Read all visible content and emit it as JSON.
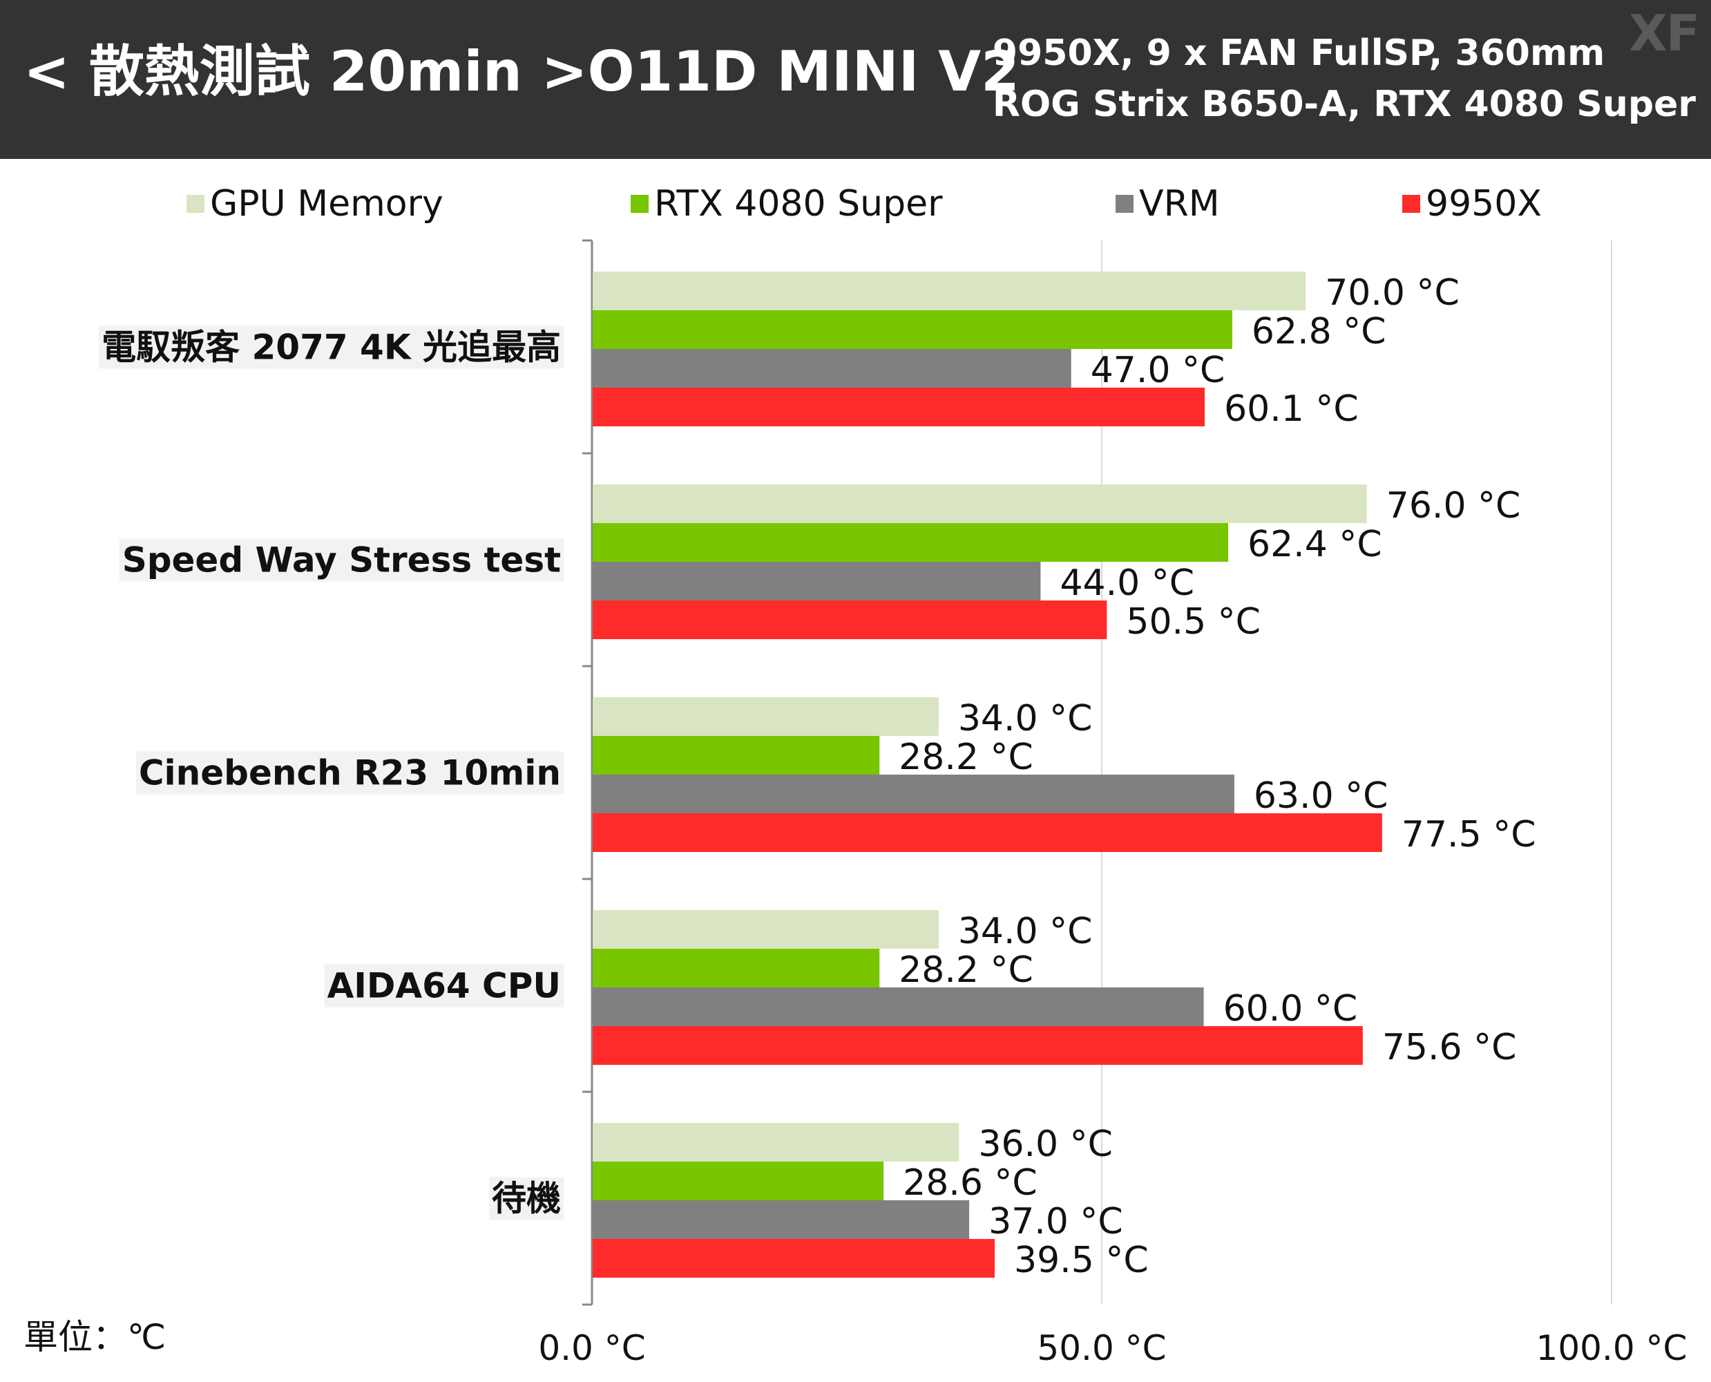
{
  "header": {
    "title": "< 散熱測試 20min >O11D MINI V2",
    "subtitle_line1": "9950X, 9 x FAN FullSP, 360mm",
    "subtitle_line2": "ROG Strix B650-A, RTX 4080 Super",
    "watermark": "XF"
  },
  "unit_label": "單位：℃",
  "colors": {
    "header_bg": "#333333",
    "gpu_memory": "#d9e5c2",
    "rtx_4080_super": "#77c600",
    "vrm": "#808080",
    "cpu_9950x": "#ff2a2a",
    "grid": "#d9d9d9",
    "axis": "#888888"
  },
  "chart_data": {
    "type": "bar",
    "orientation": "horizontal",
    "categories": [
      "電馭叛客 2077 4K 光追最高",
      "Speed Way Stress test",
      "Cinebench R23 10min",
      "AIDA64 CPU",
      "待機"
    ],
    "series": [
      {
        "name": "GPU Memory",
        "color": "#d9e5c2",
        "values": [
          70.0,
          76.0,
          34.0,
          34.0,
          36.0
        ],
        "labels": [
          "70.0 °C",
          "76.0 °C",
          "34.0 °C",
          "34.0 °C",
          "36.0 °C"
        ]
      },
      {
        "name": "RTX 4080 Super",
        "color": "#77c600",
        "values": [
          62.8,
          62.4,
          28.2,
          28.2,
          28.6
        ],
        "labels": [
          "62.8 °C",
          "62.4 °C",
          "28.2 °C",
          "28.2 °C",
          "28.6 °C"
        ]
      },
      {
        "name": "VRM",
        "color": "#808080",
        "values": [
          47.0,
          44.0,
          63.0,
          60.0,
          37.0
        ],
        "labels": [
          "47.0 °C",
          "44.0 °C",
          "63.0 °C",
          "60.0 °C",
          "37.0 °C"
        ]
      },
      {
        "name": "9950X",
        "color": "#ff2a2a",
        "values": [
          60.1,
          50.5,
          77.5,
          75.6,
          39.5
        ],
        "labels": [
          "60.1 °C",
          "50.5 °C",
          "77.5 °C",
          "75.6 °C",
          "39.5 °C"
        ]
      }
    ],
    "xlim": [
      0,
      100
    ],
    "xticks": [
      0,
      50,
      100
    ],
    "xtick_labels": [
      "0.0 °C",
      "50.0 °C",
      "100.0 °C"
    ],
    "grid": true,
    "legend_position": "top"
  }
}
